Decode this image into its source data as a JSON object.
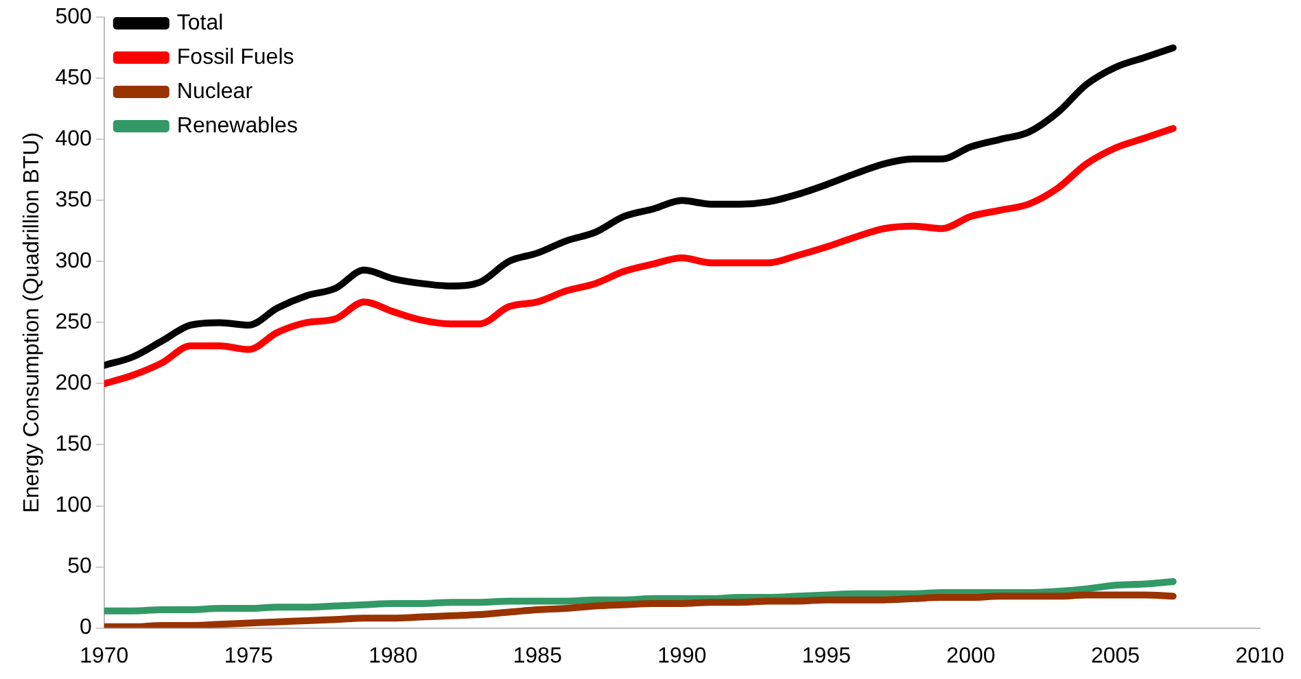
{
  "chart_data": {
    "type": "line",
    "ylabel": "Energy Consumption (Quadrillion BTU)",
    "x": [
      1970,
      1971,
      1972,
      1973,
      1974,
      1975,
      1976,
      1977,
      1978,
      1979,
      1980,
      1981,
      1982,
      1983,
      1984,
      1985,
      1986,
      1987,
      1988,
      1989,
      1990,
      1991,
      1992,
      1993,
      1994,
      1995,
      1996,
      1997,
      1998,
      1999,
      2000,
      2001,
      2002,
      2003,
      2004,
      2005,
      2006,
      2007
    ],
    "series": [
      {
        "name": "Total",
        "color": "#000000",
        "values": [
          215,
          222,
          235,
          248,
          250,
          248,
          262,
          272,
          278,
          293,
          286,
          282,
          280,
          283,
          300,
          307,
          317,
          324,
          337,
          343,
          350,
          347,
          347,
          349,
          355,
          363,
          372,
          380,
          384,
          384,
          394,
          400,
          406,
          422,
          445,
          459,
          467,
          475
        ]
      },
      {
        "name": "Fossil Fuels",
        "color": "#ff0000",
        "values": [
          200,
          207,
          217,
          231,
          231,
          228,
          242,
          250,
          253,
          267,
          259,
          252,
          249,
          249,
          263,
          267,
          276,
          282,
          292,
          298,
          303,
          299,
          299,
          299,
          305,
          312,
          320,
          327,
          329,
          327,
          337,
          342,
          347,
          360,
          380,
          393,
          401,
          409
        ]
      },
      {
        "name": "Nuclear",
        "color": "#993300",
        "values": [
          1,
          1,
          2,
          2,
          3,
          4,
          5,
          6,
          7,
          8,
          8,
          9,
          10,
          11,
          13,
          15,
          16,
          18,
          19,
          20,
          20,
          21,
          21,
          22,
          22,
          23,
          23,
          23,
          24,
          25,
          25,
          26,
          26,
          26,
          27,
          27,
          27,
          26
        ]
      },
      {
        "name": "Renewables",
        "color": "#339966",
        "values": [
          14,
          14,
          15,
          15,
          16,
          16,
          17,
          17,
          18,
          19,
          20,
          20,
          21,
          21,
          22,
          22,
          22,
          23,
          23,
          24,
          24,
          24,
          25,
          25,
          26,
          27,
          28,
          28,
          28,
          29,
          29,
          29,
          29,
          30,
          32,
          35,
          36,
          38
        ]
      }
    ],
    "xlim": [
      1970,
      2010
    ],
    "xticks": [
      1970,
      1975,
      1980,
      1985,
      1990,
      1995,
      2000,
      2005,
      2010
    ],
    "ylim": [
      0,
      500
    ],
    "yticks": [
      0,
      50,
      100,
      150,
      200,
      250,
      300,
      350,
      400,
      450,
      500
    ],
    "grid": false,
    "legend": "top left",
    "marker": "none",
    "line_style": "solid"
  }
}
